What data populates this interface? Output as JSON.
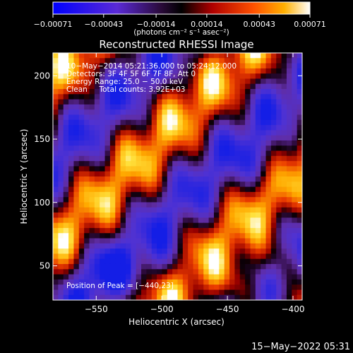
{
  "chart_data": {
    "type": "heatmap",
    "title": "Reconstructed RHESSI Image",
    "xlabel": "Heliocentric X (arcsec)",
    "ylabel": "Heliocentric Y (arcsec)",
    "xlim": [
      -583,
      -393
    ],
    "ylim": [
      23,
      218
    ],
    "x_ticks": [
      -550,
      -500,
      -450,
      -400
    ],
    "x_tick_labels": [
      "−550",
      "−500",
      "−450",
      "−400"
    ],
    "y_ticks": [
      50,
      100,
      150,
      200
    ],
    "y_tick_labels": [
      "50",
      "100",
      "150",
      "200"
    ],
    "colorbar": {
      "min": -0.00071,
      "max": 0.00071,
      "ticks": [
        -0.00071,
        -0.00043,
        -0.00014,
        0.00014,
        0.00043,
        0.00071
      ],
      "tick_labels": [
        "−0.00071",
        "−0.00043",
        "−0.00014",
        "0.00014",
        "0.00043",
        "0.00071"
      ],
      "units": "(photons cm⁻² s⁻¹ asec⁻²)"
    },
    "annotations": [
      "10−May−2014 05:21:36.000 to 05:24:12.000",
      "Detectors: 3F 4F 5F 6F 7F 8F, Att 0",
      "Energy Range: 25.0 − 50.0 keV",
      "Clean     Total counts: 3.92E+03"
    ],
    "peak_label": "Position of Peak = [−440,23]",
    "peak": [
      -440,
      23
    ],
    "footer_date": "15−May−2022 05:31"
  }
}
